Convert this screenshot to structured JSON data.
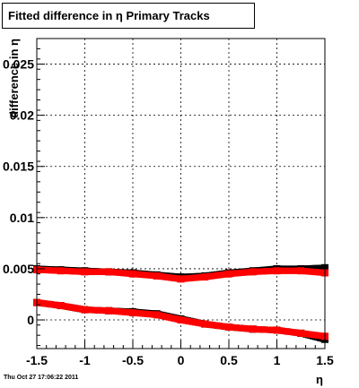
{
  "chart_data": {
    "type": "scatter",
    "title": "Fitted difference in  η  Primary Tracks",
    "xlabel": "η",
    "ylabel": "difference in η",
    "xlim": [
      -1.5,
      1.5
    ],
    "ylim": [
      -0.0028,
      0.0275
    ],
    "x_ticks": [
      -1.5,
      -1,
      -0.5,
      0,
      0.5,
      1,
      1.5
    ],
    "x_tick_labels": [
      "-1.5",
      "-1",
      "-0.5",
      "0",
      "0.5",
      "1",
      "1.5"
    ],
    "y_ticks": [
      0,
      0.005,
      0.01,
      0.015,
      0.02,
      0.025
    ],
    "y_tick_labels": [
      "0",
      "0.005",
      "0.01",
      "0.015",
      "0.02",
      "0.025"
    ],
    "grid": true,
    "legend": "none",
    "series": [
      {
        "color": "#000000",
        "marker": "square",
        "x": [
          -1.5,
          -1.25,
          -1.0,
          -0.75,
          -0.5,
          -0.25,
          0.0,
          0.25,
          0.5,
          0.75,
          1.0,
          1.25,
          1.5
        ],
        "y": [
          0.005,
          0.0049,
          0.0048,
          0.0047,
          0.0046,
          0.0044,
          0.0042,
          0.0043,
          0.0046,
          0.0048,
          0.005,
          0.005,
          0.0051
        ]
      },
      {
        "color": "#000000",
        "marker": "square",
        "x": [
          -1.5,
          -1.25,
          -1.0,
          -0.75,
          -0.5,
          -0.25,
          0.0,
          0.25,
          0.5,
          0.75,
          1.0,
          1.25,
          1.5
        ],
        "y": [
          0.0017,
          0.0014,
          0.001,
          0.0009,
          0.0008,
          0.0006,
          0.0001,
          -0.0004,
          -0.0007,
          -0.0009,
          -0.001,
          -0.0013,
          -0.0019
        ]
      },
      {
        "color": "#ff0000",
        "marker": "square",
        "x": [
          -1.5,
          -1.25,
          -1.0,
          -0.75,
          -0.5,
          -0.25,
          0.0,
          0.25,
          0.5,
          0.75,
          1.0,
          1.25,
          1.5
        ],
        "y": [
          0.0049,
          0.0048,
          0.0047,
          0.0047,
          0.0045,
          0.0043,
          0.004,
          0.0042,
          0.0045,
          0.0047,
          0.0048,
          0.0048,
          0.0046
        ]
      },
      {
        "color": "#ff0000",
        "marker": "square",
        "x": [
          -1.5,
          -1.25,
          -1.0,
          -0.75,
          -0.5,
          -0.25,
          0.0,
          0.25,
          0.5,
          0.75,
          1.0,
          1.25,
          1.5
        ],
        "y": [
          0.0017,
          0.0014,
          0.001,
          0.0009,
          0.0007,
          0.0005,
          0.0,
          -0.0004,
          -0.0007,
          -0.0009,
          -0.001,
          -0.0013,
          -0.0016
        ]
      }
    ]
  },
  "footer": {
    "timestamp": "Thu Oct 27 17:06:22 2011"
  }
}
